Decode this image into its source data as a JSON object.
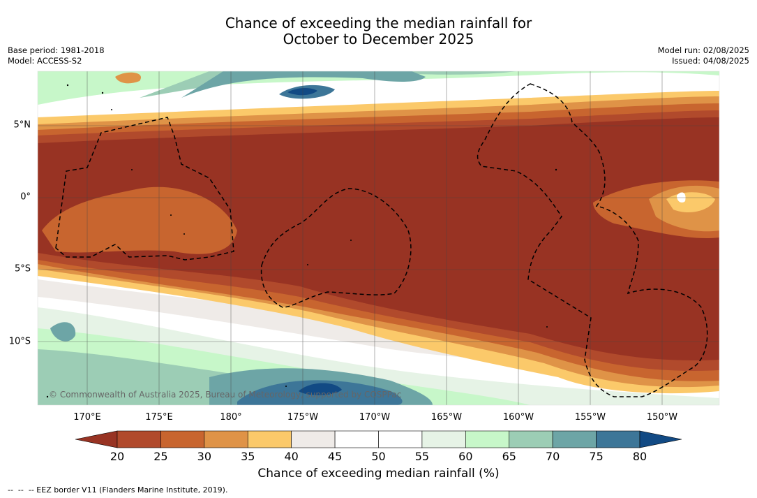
{
  "title_line1": "Chance of exceeding the median rainfall for",
  "title_line2": "October to December 2025",
  "meta_left": [
    "Base period: 1981-2018",
    "Model: ACCESS-S2"
  ],
  "meta_right": [
    "Model run: 02/08/2025",
    "Issued: 04/08/2025"
  ],
  "lat_labels": [
    "5°N",
    "0°",
    "5°S",
    "10°S"
  ],
  "lon_labels": [
    "170°E",
    "175°E",
    "180°",
    "175°W",
    "170°W",
    "165°W",
    "160°W",
    "155°W",
    "150°W"
  ],
  "copyright": "© Commonwealth of Australia 2025, Bureau of Meteorology, supported by COSPPac",
  "colorbar": {
    "title": "Chance of exceeding median rainfall (%)",
    "ticks": [
      "20",
      "25",
      "30",
      "35",
      "40",
      "45",
      "50",
      "55",
      "60",
      "65",
      "70",
      "75",
      "80"
    ],
    "colors": [
      "#983323",
      "#b14a2c",
      "#c8652f",
      "#df9347",
      "#fbc96a",
      "#efebe8",
      "#ffffff",
      "#ffffff",
      "#e6f3e6",
      "#c7f7c9",
      "#9ccdb5",
      "#6da5a6",
      "#3d7698",
      "#124a84"
    ]
  },
  "footnote": "--  --  -- EEZ border V11 (Flanders Marine Institute, 2019)."
}
